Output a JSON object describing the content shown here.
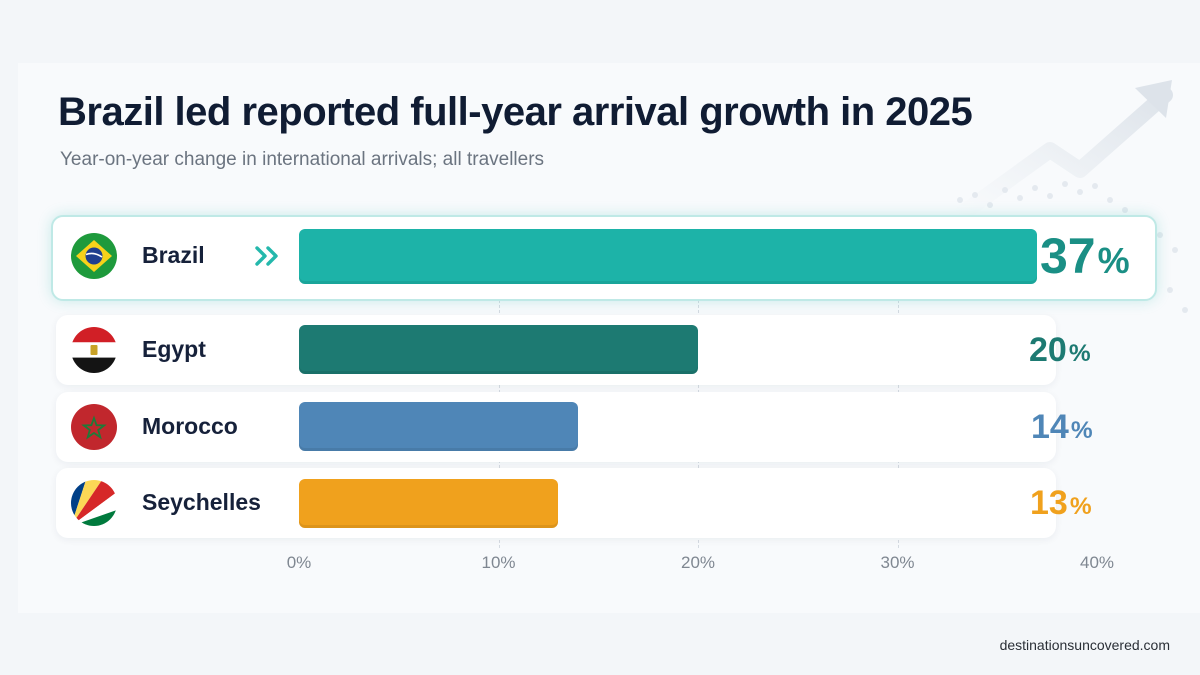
{
  "title": "Brazil led reported full-year arrival growth in 2025",
  "subtitle": "Year-on-year change in international arrivals; all travellers",
  "source": "destinationsuncovered.com",
  "colors": {
    "background": "#f3f6f9",
    "brazil": "#1db3a8",
    "egypt": "#1d7a72",
    "morocco": "#4f86b7",
    "seychelles": "#f0a11d"
  },
  "chart_data": {
    "type": "bar",
    "orientation": "horizontal",
    "title": "Brazil led reported full-year arrival growth in 2025",
    "subtitle": "Year-on-year change in international arrivals; all travellers",
    "categories": [
      "Brazil",
      "Egypt",
      "Morocco",
      "Seychelles"
    ],
    "values": [
      37,
      20,
      14,
      13
    ],
    "value_labels": [
      "37",
      "20",
      "14",
      "13"
    ],
    "unit_suffix": "%",
    "xlim": [
      0,
      40
    ],
    "ticks": [
      0,
      10,
      20,
      30,
      40
    ],
    "tick_labels": [
      "0%",
      "10%",
      "20%",
      "30%",
      "40%"
    ],
    "grid": true,
    "highlight": "Brazil",
    "bar_colors": [
      "#1db3a8",
      "#1d7a72",
      "#4f86b7",
      "#f0a11d"
    ],
    "flag_icons": [
      "flag-brazil-icon",
      "flag-egypt-icon",
      "flag-morocco-icon",
      "flag-seychelles-icon"
    ]
  }
}
